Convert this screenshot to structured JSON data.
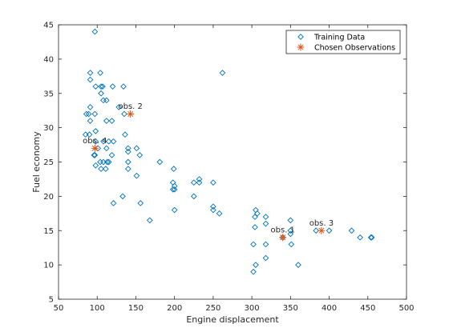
{
  "colors": {
    "training_marker": "#0072BD",
    "chosen_marker": "#D95319",
    "axis": "#262626"
  },
  "chart_data": {
    "type": "scatter",
    "xlabel": "Engine displacement",
    "ylabel": "Fuel economy",
    "xlim": [
      50,
      500
    ],
    "ylim": [
      5,
      45
    ],
    "xticks": [
      50,
      100,
      150,
      200,
      250,
      300,
      350,
      400,
      450,
      500
    ],
    "yticks": [
      5,
      10,
      15,
      20,
      25,
      30,
      35,
      40,
      45
    ],
    "grid": false,
    "legend_position": "top-right",
    "series": [
      {
        "name": "Training Data",
        "marker": "diamond",
        "points": [
          [
            97,
            44
          ],
          [
            262,
            38
          ],
          [
            91,
            38
          ],
          [
            104,
            38
          ],
          [
            91,
            37
          ],
          [
            98,
            36
          ],
          [
            105,
            36
          ],
          [
            107,
            36
          ],
          [
            120,
            36
          ],
          [
            134,
            36
          ],
          [
            105,
            35
          ],
          [
            108,
            34
          ],
          [
            112,
            34
          ],
          [
            128,
            33
          ],
          [
            91,
            33
          ],
          [
            97,
            32
          ],
          [
            86,
            32
          ],
          [
            89,
            32
          ],
          [
            135,
            32
          ],
          [
            91,
            31
          ],
          [
            112,
            31
          ],
          [
            119,
            31
          ],
          [
            98,
            29.5
          ],
          [
            90,
            29
          ],
          [
            85,
            29
          ],
          [
            136,
            29
          ],
          [
            108,
            28
          ],
          [
            121,
            28
          ],
          [
            115,
            28
          ],
          [
            98,
            28
          ],
          [
            101,
            27
          ],
          [
            112,
            27
          ],
          [
            140,
            27
          ],
          [
            151,
            27
          ],
          [
            140,
            26.5
          ],
          [
            96,
            26
          ],
          [
            97,
            26
          ],
          [
            119,
            26
          ],
          [
            155,
            26
          ],
          [
            104,
            25
          ],
          [
            108,
            25
          ],
          [
            113,
            25
          ],
          [
            140,
            25
          ],
          [
            115,
            25
          ],
          [
            98,
            24.5
          ],
          [
            105,
            24
          ],
          [
            111,
            24
          ],
          [
            140,
            24
          ],
          [
            181,
            25
          ],
          [
            199,
            24
          ],
          [
            151,
            23
          ],
          [
            225,
            22
          ],
          [
            232,
            22
          ],
          [
            232,
            22.5
          ],
          [
            250,
            22
          ],
          [
            198,
            22
          ],
          [
            200,
            21
          ],
          [
            198,
            21
          ],
          [
            200,
            21.5
          ],
          [
            225,
            20
          ],
          [
            133,
            20
          ],
          [
            121,
            19
          ],
          [
            156,
            19
          ],
          [
            250,
            18.5
          ],
          [
            250,
            18
          ],
          [
            258,
            17.5
          ],
          [
            200,
            18
          ],
          [
            305,
            18
          ],
          [
            304,
            17
          ],
          [
            307,
            17.5
          ],
          [
            318,
            17
          ],
          [
            350,
            16.5
          ],
          [
            168,
            16.5
          ],
          [
            318,
            16
          ],
          [
            304,
            15.5
          ],
          [
            350,
            15
          ],
          [
            383,
            15
          ],
          [
            400,
            15
          ],
          [
            429,
            15
          ],
          [
            440,
            14
          ],
          [
            455,
            14
          ],
          [
            454,
            14
          ],
          [
            350,
            14.5
          ],
          [
            340,
            14
          ],
          [
            302,
            13
          ],
          [
            318,
            13
          ],
          [
            351,
            13
          ],
          [
            318,
            11
          ],
          [
            305,
            10
          ],
          [
            360,
            10
          ],
          [
            302,
            9
          ]
        ]
      },
      {
        "name": "Chosen Observations",
        "marker": "asterisk",
        "points": [
          {
            "x": 340,
            "y": 14,
            "label": "obs. 1"
          },
          {
            "x": 143,
            "y": 32,
            "label": "obs. 2"
          },
          {
            "x": 390,
            "y": 15,
            "label": "obs. 3"
          },
          {
            "x": 97,
            "y": 27,
            "label": "obs. 4"
          }
        ]
      }
    ]
  }
}
